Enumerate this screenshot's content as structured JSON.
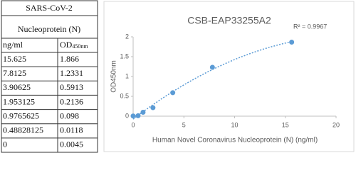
{
  "table": {
    "title_lines": [
      "SARS-CoV-2",
      "Nucleoprotein (N)"
    ],
    "columns": [
      {
        "label": "ng/ml"
      },
      {
        "label": "OD",
        "subscript": "450nm"
      }
    ],
    "rows": [
      [
        "15.625",
        "1.866"
      ],
      [
        "7.8125",
        "1.2331"
      ],
      [
        "3.90625",
        "0.5913"
      ],
      [
        "1.953125",
        "0.2136"
      ],
      [
        "0.9765625",
        "0.098"
      ],
      [
        "0.48828125",
        "0.0118"
      ],
      [
        "0",
        "0.0045"
      ]
    ]
  },
  "chart_data": {
    "type": "scatter",
    "title": "CSB-EAP33255A2",
    "annotation": "R² = 0.9967",
    "x_label": "Human Novel Coronavirus Nucleoprotein (N)  (ng/ml)",
    "y_label": "OD450nm",
    "x": [
      15.625,
      7.8125,
      3.90625,
      1.953125,
      0.9765625,
      0.48828125,
      0
    ],
    "values": [
      1.866,
      1.2331,
      0.5913,
      0.2136,
      0.098,
      0.0118,
      0.0045
    ],
    "color": "#5b9bd5",
    "trendline": true,
    "xlim": [
      0,
      20
    ],
    "xticks": [
      0,
      5,
      10,
      15,
      20
    ],
    "ylim": [
      0,
      2
    ],
    "yticks": [
      0,
      0.5,
      1,
      1.5,
      2
    ]
  }
}
